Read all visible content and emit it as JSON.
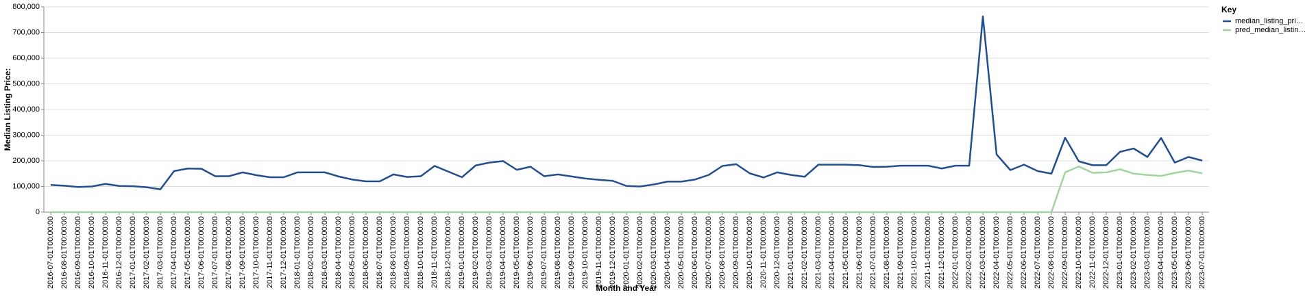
{
  "chart_data": {
    "type": "line",
    "y_label": "Median Listing Price:",
    "x_label": "Month and Year",
    "legend_title": "Key",
    "legend": "top-right",
    "grid": true,
    "categories": [
      "2016-07-01T00:00:00",
      "2016-08-01T00:00:00",
      "2016-09-01T00:00:00",
      "2016-10-01T00:00:00",
      "2016-11-01T00:00:00",
      "2016-12-01T00:00:00",
      "2017-01-01T00:00:00",
      "2017-02-01T00:00:00",
      "2017-03-01T00:00:00",
      "2017-04-01T00:00:00",
      "2017-05-01T00:00:00",
      "2017-06-01T00:00:00",
      "2017-07-01T00:00:00",
      "2017-08-01T00:00:00",
      "2017-09-01T00:00:00",
      "2017-10-01T00:00:00",
      "2017-11-01T00:00:00",
      "2017-12-01T00:00:00",
      "2018-01-01T00:00:00",
      "2018-02-01T00:00:00",
      "2018-03-01T00:00:00",
      "2018-04-01T00:00:00",
      "2018-05-01T00:00:00",
      "2018-06-01T00:00:00",
      "2018-07-01T00:00:00",
      "2018-08-01T00:00:00",
      "2018-09-01T00:00:00",
      "2018-10-01T00:00:00",
      "2018-11-01T00:00:00",
      "2018-12-01T00:00:00",
      "2019-01-01T00:00:00",
      "2019-02-01T00:00:00",
      "2019-03-01T00:00:00",
      "2019-04-01T00:00:00",
      "2019-05-01T00:00:00",
      "2019-06-01T00:00:00",
      "2019-07-01T00:00:00",
      "2019-08-01T00:00:00",
      "2019-09-01T00:00:00",
      "2019-10-01T00:00:00",
      "2019-11-01T00:00:00",
      "2019-12-01T00:00:00",
      "2020-01-01T00:00:00",
      "2020-02-01T00:00:00",
      "2020-03-01T00:00:00",
      "2020-04-01T00:00:00",
      "2020-05-01T00:00:00",
      "2020-06-01T00:00:00",
      "2020-07-01T00:00:00",
      "2020-08-01T00:00:00",
      "2020-09-01T00:00:00",
      "2020-10-01T00:00:00",
      "2020-11-01T00:00:00",
      "2020-12-01T00:00:00",
      "2021-01-01T00:00:00",
      "2021-02-01T00:00:00",
      "2021-03-01T00:00:00",
      "2021-04-01T00:00:00",
      "2021-05-01T00:00:00",
      "2021-06-01T00:00:00",
      "2021-07-01T00:00:00",
      "2021-08-01T00:00:00",
      "2021-09-01T00:00:00",
      "2021-10-01T00:00:00",
      "2021-11-01T00:00:00",
      "2021-12-01T00:00:00",
      "2022-01-01T00:00:00",
      "2022-02-01T00:00:00",
      "2022-03-01T00:00:00",
      "2022-04-01T00:00:00",
      "2022-05-01T00:00:00",
      "2022-06-01T00:00:00",
      "2022-07-01T00:00:00",
      "2022-08-01T00:00:00",
      "2022-09-01T00:00:00",
      "2022-10-01T00:00:00",
      "2022-11-01T00:00:00",
      "2022-12-01T00:00:00",
      "2023-01-01T00:00:00",
      "2023-02-01T00:00:00",
      "2023-03-01T00:00:00",
      "2023-04-01T00:00:00",
      "2023-05-01T00:00:00",
      "2023-06-01T00:00:00",
      "2023-07-01T00:00:00"
    ],
    "series": [
      {
        "name": "median_listing_pri…",
        "color": "#1f4e96",
        "values": [
          106000,
          103000,
          98000,
          100000,
          110000,
          102000,
          101000,
          97000,
          89000,
          160000,
          170000,
          169000,
          140000,
          140000,
          155000,
          144000,
          136000,
          136000,
          155000,
          155000,
          155000,
          139000,
          127000,
          120000,
          120000,
          147000,
          137000,
          140000,
          180000,
          158000,
          136000,
          182000,
          193000,
          199000,
          165000,
          177000,
          140000,
          147000,
          139000,
          131000,
          126000,
          122000,
          102000,
          100000,
          108000,
          119000,
          119000,
          127000,
          145000,
          180000,
          187000,
          151000,
          135000,
          155000,
          145000,
          138000,
          185000,
          185000,
          185000,
          183000,
          176000,
          177000,
          181000,
          181000,
          181000,
          170000,
          181000,
          181000,
          763000,
          225000,
          164000,
          185000,
          160000,
          150000,
          290000,
          198000,
          183000,
          183000,
          235000,
          248000,
          215000,
          289000,
          193000,
          215000,
          201000
        ]
      },
      {
        "name": "pred_median_listin…",
        "color": "#9dd89a",
        "values": [
          0,
          0,
          0,
          0,
          0,
          0,
          0,
          0,
          0,
          0,
          0,
          0,
          0,
          0,
          0,
          0,
          0,
          0,
          0,
          0,
          0,
          0,
          0,
          0,
          0,
          0,
          0,
          0,
          0,
          0,
          0,
          0,
          0,
          0,
          0,
          0,
          0,
          0,
          0,
          0,
          0,
          0,
          0,
          0,
          0,
          0,
          0,
          0,
          0,
          0,
          0,
          0,
          0,
          0,
          0,
          0,
          0,
          0,
          0,
          0,
          0,
          0,
          0,
          0,
          0,
          0,
          0,
          0,
          0,
          0,
          0,
          0,
          0,
          0,
          155000,
          178000,
          153000,
          155000,
          167000,
          150000,
          145000,
          141000,
          153000,
          162000,
          151000
        ]
      }
    ],
    "ylim": [
      0,
      800000
    ],
    "yticks": [
      0,
      {
        "value": 100000,
        "label": "100,000"
      },
      {
        "value": 200000,
        "label": "200,000"
      },
      {
        "value": 300000,
        "label": "300,000"
      },
      {
        "value": 400000,
        "label": "400,000"
      },
      {
        "value": 500000,
        "label": "500,000"
      },
      {
        "value": 600000,
        "label": "600,000"
      },
      {
        "value": 700000,
        "label": "700,000"
      },
      {
        "value": 800000,
        "label": "800,000"
      }
    ]
  }
}
